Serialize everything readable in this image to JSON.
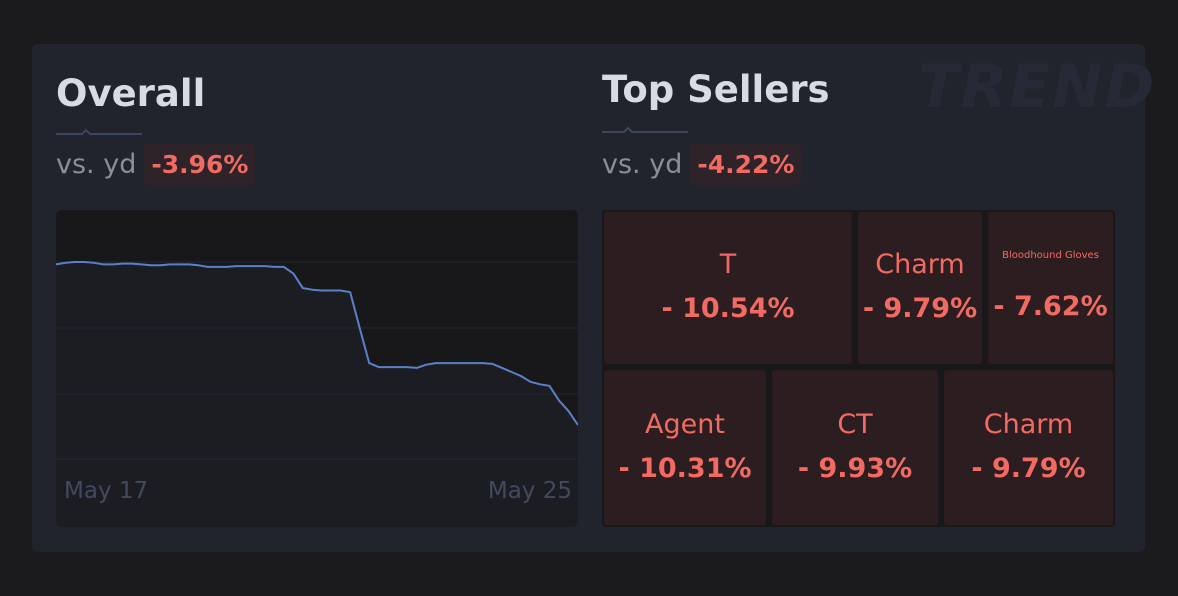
{
  "watermark": "TREND",
  "overall": {
    "title": "Overall",
    "vs_label": "vs. yd",
    "change": "-3.96%"
  },
  "top_sellers": {
    "title": "Top Sellers",
    "vs_label": "vs. yd",
    "change": "-4.22%",
    "tiles": [
      {
        "name": "T",
        "change": "- 10.54%"
      },
      {
        "name": "Charm",
        "change": "- 9.79%"
      },
      {
        "name": "Bloodhound Gloves",
        "change": "- 7.62%"
      },
      {
        "name": "Agent",
        "change": "- 10.31%"
      },
      {
        "name": "CT",
        "change": "- 9.93%"
      },
      {
        "name": "Charm",
        "change": "- 9.79%"
      }
    ]
  },
  "colors": {
    "line": "#5b80c8",
    "negative": "#f26a62",
    "gridline": "#252833"
  },
  "chart_data": {
    "type": "line",
    "x_start_label": "May 17",
    "x_end_label": "May 25",
    "grid": true,
    "values": [
      100.0,
      100.2,
      100.3,
      100.3,
      100.2,
      100.0,
      100.0,
      100.1,
      100.1,
      100.0,
      99.9,
      99.9,
      100.0,
      100.0,
      100.0,
      99.9,
      99.7,
      99.7,
      99.7,
      99.8,
      99.8,
      99.8,
      99.8,
      99.7,
      99.7,
      98.9,
      97.1,
      96.9,
      96.8,
      96.8,
      96.8,
      96.6,
      92.2,
      87.9,
      87.4,
      87.4,
      87.4,
      87.4,
      87.3,
      87.7,
      87.9,
      87.9,
      87.9,
      87.9,
      87.9,
      87.9,
      87.8,
      87.3,
      86.8,
      86.3,
      85.6,
      85.3,
      85.1,
      83.3,
      82.0,
      80.3
    ]
  }
}
